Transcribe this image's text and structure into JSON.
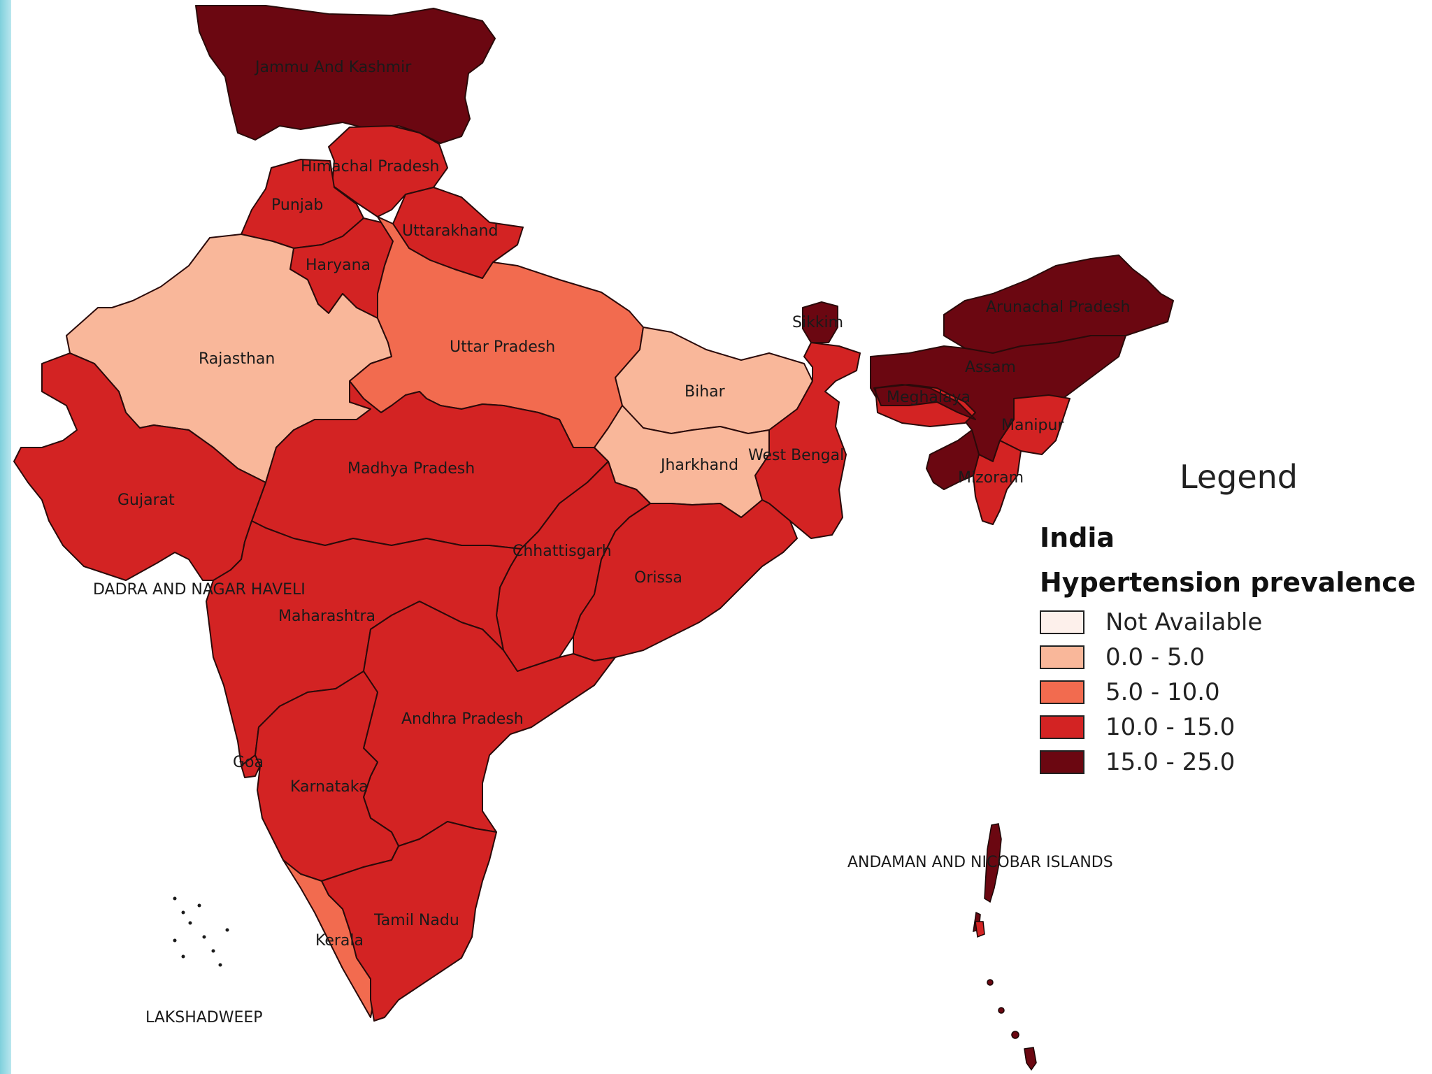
{
  "legend": {
    "title": "Legend",
    "layer": "India",
    "field": "Hypertension prevalence",
    "classes": [
      {
        "label": "Not Available",
        "color": "#fdf0eb"
      },
      {
        "label": "0.0 - 5.0",
        "color": "#f9b79a"
      },
      {
        "label": "5.0 - 10.0",
        "color": "#f26b4f"
      },
      {
        "label": "10.0 - 15.0",
        "color": "#d32323"
      },
      {
        "label": "15.0 - 25.0",
        "color": "#6b0711"
      }
    ]
  },
  "states": {
    "jammu_kashmir": {
      "name": "Jammu And Kashmir",
      "class": "15.0 - 25.0"
    },
    "himachal": {
      "name": "Himachal Pradesh",
      "class": "10.0 - 15.0"
    },
    "punjab": {
      "name": "Punjab",
      "class": "10.0 - 15.0"
    },
    "uttarakhand": {
      "name": "Uttarakhand",
      "class": "10.0 - 15.0"
    },
    "haryana": {
      "name": "Haryana",
      "class": "10.0 - 15.0"
    },
    "rajasthan": {
      "name": "Rajasthan",
      "class": "0.0 - 5.0"
    },
    "uttar_pradesh": {
      "name": "Uttar Pradesh",
      "class": "5.0 - 10.0"
    },
    "bihar": {
      "name": "Bihar",
      "class": "0.0 - 5.0"
    },
    "sikkim": {
      "name": "Sikkim",
      "class": "15.0 - 25.0"
    },
    "arunachal": {
      "name": "Arunachal Pradesh",
      "class": "15.0 - 25.0"
    },
    "assam": {
      "name": "Assam",
      "class": "15.0 - 25.0"
    },
    "meghalaya": {
      "name": "Meghalaya",
      "class": "10.0 - 15.0"
    },
    "manipur": {
      "name": "Manipur",
      "class": "10.0 - 15.0"
    },
    "mizoram": {
      "name": "Mizoram",
      "class": "10.0 - 15.0"
    },
    "tripura": {
      "name": "",
      "class": "15.0 - 25.0"
    },
    "west_bengal": {
      "name": "West Bengal",
      "class": "10.0 - 15.0"
    },
    "jharkhand": {
      "name": "Jharkhand",
      "class": "0.0 - 5.0"
    },
    "gujarat": {
      "name": "Gujarat",
      "class": "10.0 - 15.0"
    },
    "madhya_pradesh": {
      "name": "Madhya Pradesh",
      "class": "10.0 - 15.0"
    },
    "chhattisgarh": {
      "name": "Chhattisgarh",
      "class": "10.0 - 15.0"
    },
    "orissa": {
      "name": "Orissa",
      "class": "10.0 - 15.0"
    },
    "maharashtra": {
      "name": "Maharashtra",
      "class": "10.0 - 15.0"
    },
    "goa": {
      "name": "Goa",
      "class": "10.0 - 15.0"
    },
    "andhra_pradesh": {
      "name": "Andhra Pradesh",
      "class": "10.0 - 15.0"
    },
    "karnataka": {
      "name": "Karnataka",
      "class": "10.0 - 15.0"
    },
    "tamil_nadu": {
      "name": "Tamil Nadu",
      "class": "10.0 - 15.0"
    },
    "kerala": {
      "name": "Kerala",
      "class": "5.0 - 10.0"
    },
    "dadra": {
      "name": "DADRA AND NAGAR HAVELI",
      "class": "10.0 - 15.0"
    },
    "lakshadweep": {
      "name": "LAKSHADWEEP",
      "class": "15.0 - 25.0"
    },
    "andaman": {
      "name": "ANDAMAN AND NICOBAR ISLANDS",
      "class": "15.0 - 25.0"
    }
  },
  "colors": {
    "background": "#ffffff",
    "border": "#2a0a0a",
    "left_strip": "#7fd0dc"
  }
}
